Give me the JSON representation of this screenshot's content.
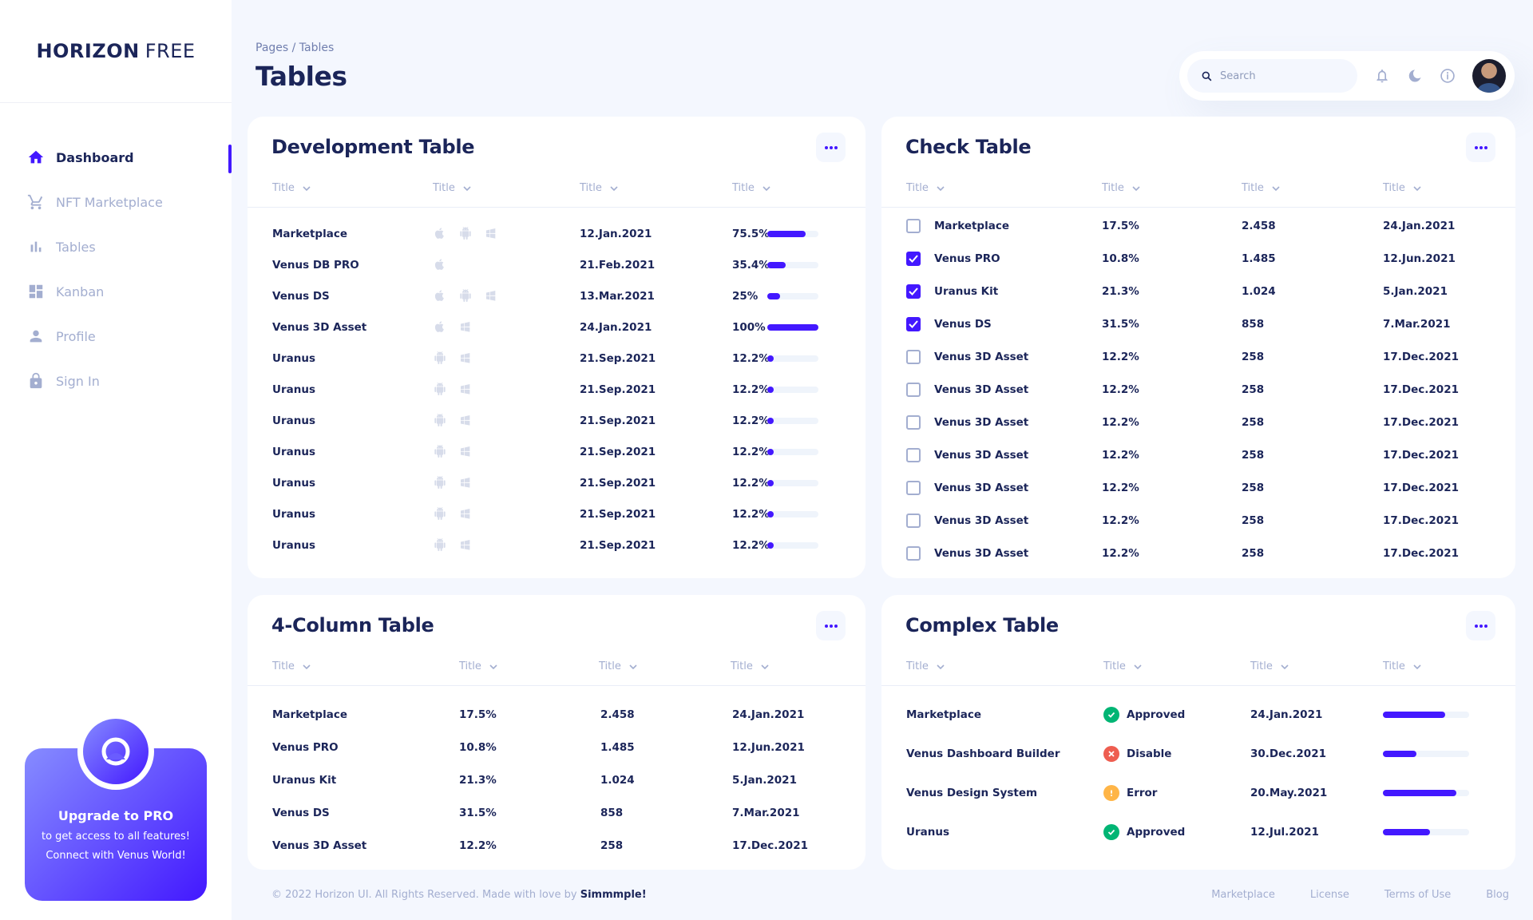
{
  "brand": {
    "bold": "HORIZON",
    "light": "FREE"
  },
  "sidebar": {
    "items": [
      {
        "label": "Dashboard",
        "icon": "home-icon",
        "active": true
      },
      {
        "label": "NFT Marketplace",
        "icon": "cart-icon"
      },
      {
        "label": "Tables",
        "icon": "bar-chart-icon"
      },
      {
        "label": "Kanban",
        "icon": "dashboard-grid-icon"
      },
      {
        "label": "Profile",
        "icon": "person-icon"
      },
      {
        "label": "Sign In",
        "icon": "lock-icon"
      }
    ]
  },
  "upgrade": {
    "title": "Upgrade to PRO",
    "line1": "to get access to all features!",
    "line2": "Connect with Venus World!"
  },
  "header": {
    "breadcrumb": "Pages / Tables",
    "title": "Tables",
    "search_placeholder": "Search"
  },
  "th_label": "Title",
  "dev_table": {
    "title": "Development Table",
    "rows": [
      {
        "name": "Marketplace",
        "platforms": [
          "apple",
          "android",
          "windows"
        ],
        "date": "12.Jan.2021",
        "progress": "75.5%",
        "fill": 75.5
      },
      {
        "name": "Venus DB PRO",
        "platforms": [
          "apple"
        ],
        "date": "21.Feb.2021",
        "progress": "35.4%",
        "fill": 35.4
      },
      {
        "name": "Venus DS",
        "platforms": [
          "apple",
          "android",
          "windows"
        ],
        "date": "13.Mar.2021",
        "progress": "25%",
        "fill": 25
      },
      {
        "name": "Venus 3D Asset",
        "platforms": [
          "apple",
          "windows"
        ],
        "date": "24.Jan.2021",
        "progress": "100%",
        "fill": 100
      },
      {
        "name": "Uranus",
        "platforms": [
          "android",
          "windows"
        ],
        "date": "21.Sep.2021",
        "progress": "12.2%",
        "fill": 12.2
      },
      {
        "name": "Uranus",
        "platforms": [
          "android",
          "windows"
        ],
        "date": "21.Sep.2021",
        "progress": "12.2%",
        "fill": 12.2
      },
      {
        "name": "Uranus",
        "platforms": [
          "android",
          "windows"
        ],
        "date": "21.Sep.2021",
        "progress": "12.2%",
        "fill": 12.2
      },
      {
        "name": "Uranus",
        "platforms": [
          "android",
          "windows"
        ],
        "date": "21.Sep.2021",
        "progress": "12.2%",
        "fill": 12.2
      },
      {
        "name": "Uranus",
        "platforms": [
          "android",
          "windows"
        ],
        "date": "21.Sep.2021",
        "progress": "12.2%",
        "fill": 12.2
      },
      {
        "name": "Uranus",
        "platforms": [
          "android",
          "windows"
        ],
        "date": "21.Sep.2021",
        "progress": "12.2%",
        "fill": 12.2
      },
      {
        "name": "Uranus",
        "platforms": [
          "android",
          "windows"
        ],
        "date": "21.Sep.2021",
        "progress": "12.2%",
        "fill": 12.2
      }
    ]
  },
  "check_table": {
    "title": "Check Table",
    "rows": [
      {
        "checked": false,
        "name": "Marketplace",
        "progress": "17.5%",
        "quantity": "2.458",
        "date": "24.Jan.2021"
      },
      {
        "checked": true,
        "name": "Venus PRO",
        "progress": "10.8%",
        "quantity": "1.485",
        "date": "12.Jun.2021"
      },
      {
        "checked": true,
        "name": "Uranus Kit",
        "progress": "21.3%",
        "quantity": "1.024",
        "date": "5.Jan.2021"
      },
      {
        "checked": true,
        "name": "Venus DS",
        "progress": "31.5%",
        "quantity": "858",
        "date": "7.Mar.2021"
      },
      {
        "checked": false,
        "name": "Venus 3D Asset",
        "progress": "12.2%",
        "quantity": "258",
        "date": "17.Dec.2021"
      },
      {
        "checked": false,
        "name": "Venus 3D Asset",
        "progress": "12.2%",
        "quantity": "258",
        "date": "17.Dec.2021"
      },
      {
        "checked": false,
        "name": "Venus 3D Asset",
        "progress": "12.2%",
        "quantity": "258",
        "date": "17.Dec.2021"
      },
      {
        "checked": false,
        "name": "Venus 3D Asset",
        "progress": "12.2%",
        "quantity": "258",
        "date": "17.Dec.2021"
      },
      {
        "checked": false,
        "name": "Venus 3D Asset",
        "progress": "12.2%",
        "quantity": "258",
        "date": "17.Dec.2021"
      },
      {
        "checked": false,
        "name": "Venus 3D Asset",
        "progress": "12.2%",
        "quantity": "258",
        "date": "17.Dec.2021"
      },
      {
        "checked": false,
        "name": "Venus 3D Asset",
        "progress": "12.2%",
        "quantity": "258",
        "date": "17.Dec.2021"
      }
    ]
  },
  "four_col_table": {
    "title": "4-Column Table",
    "rows": [
      {
        "name": "Marketplace",
        "progress": "17.5%",
        "quantity": "2.458",
        "date": "24.Jan.2021"
      },
      {
        "name": "Venus PRO",
        "progress": "10.8%",
        "quantity": "1.485",
        "date": "12.Jun.2021"
      },
      {
        "name": "Uranus Kit",
        "progress": "21.3%",
        "quantity": "1.024",
        "date": "5.Jan.2021"
      },
      {
        "name": "Venus DS",
        "progress": "31.5%",
        "quantity": "858",
        "date": "7.Mar.2021"
      },
      {
        "name": "Venus 3D Asset",
        "progress": "12.2%",
        "quantity": "258",
        "date": "17.Dec.2021"
      }
    ]
  },
  "complex_table": {
    "title": "Complex Table",
    "status_colors": {
      "Approved": "#01b574",
      "Disable": "#ee5d50",
      "Error": "#ffb547"
    },
    "rows": [
      {
        "name": "Marketplace",
        "status": "Approved",
        "date": "24.Jan.2021",
        "fill": 72
      },
      {
        "name": "Venus Dashboard Builder",
        "status": "Disable",
        "date": "30.Dec.2021",
        "fill": 39
      },
      {
        "name": "Venus Design System",
        "status": "Error",
        "date": "20.May.2021",
        "fill": 85
      },
      {
        "name": "Uranus",
        "status": "Approved",
        "date": "12.Jul.2021",
        "fill": 55
      }
    ]
  },
  "footer": {
    "copy": "© 2022 Horizon UI. All Rights Reserved. Made with love by",
    "author": "Simmmple!",
    "links": [
      "Marketplace",
      "License",
      "Terms of Use",
      "Blog"
    ]
  },
  "colors": {
    "accent": "#4318ff",
    "text": "#1b2559",
    "muted": "#a3aed0",
    "background": "#f4f7fe"
  }
}
